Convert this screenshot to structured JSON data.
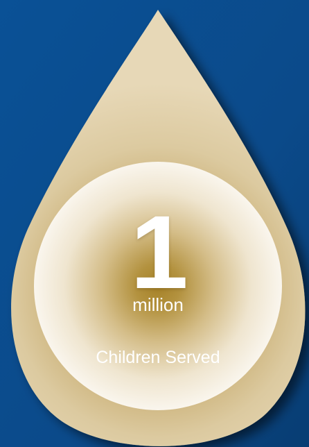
{
  "stat": {
    "number": "1",
    "unit": "million",
    "caption": "Children Served"
  },
  "colors": {
    "background": "#0b4f91",
    "background_dark": "#083a6c",
    "drop_outer": "#d9c49a",
    "drop_center": "#b08a3a",
    "circle_light": "#f4efe2",
    "text": "#ffffff"
  }
}
